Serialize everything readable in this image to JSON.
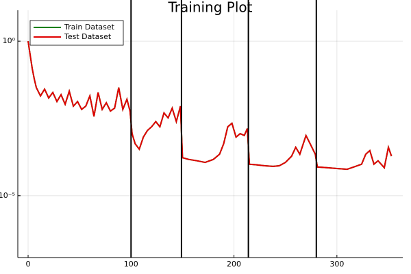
{
  "chart_data": {
    "type": "line",
    "title": "Training Plot",
    "x": [
      0,
      2,
      4,
      6,
      8,
      12,
      16,
      20,
      24,
      28,
      32,
      36,
      40,
      44,
      48,
      52,
      56,
      60,
      64,
      68,
      72,
      76,
      80,
      84,
      88,
      92,
      96,
      99,
      101,
      104,
      108,
      112,
      116,
      120,
      124,
      128,
      132,
      136,
      140,
      144,
      148,
      150,
      156,
      164,
      172,
      180,
      186,
      190,
      194,
      198,
      202,
      206,
      210,
      213,
      215,
      222,
      230,
      238,
      244,
      250,
      256,
      260,
      264,
      270,
      274,
      279,
      281,
      290,
      300,
      310,
      318,
      324,
      328,
      332,
      336,
      340,
      346,
      350,
      353
    ],
    "series": [
      {
        "name": "Train Dataset",
        "color": "#008000",
        "values": [
          1,
          0.363,
          0.132,
          0.0603,
          0.0316,
          0.017,
          0.0282,
          0.0145,
          0.0219,
          0.0112,
          0.0186,
          0.0091,
          0.024,
          0.0079,
          0.0112,
          0.0062,
          0.0079,
          0.017,
          0.0037,
          0.0219,
          0.0062,
          0.0102,
          0.0055,
          0.0068,
          0.0316,
          0.0062,
          0.0132,
          0.0055,
          0.00102,
          0.00048,
          0.00032,
          0.00079,
          0.0013,
          0.0017,
          0.0025,
          0.0017,
          0.0048,
          0.0033,
          0.0068,
          0.0025,
          0.0079,
          0.00017,
          0.00015,
          0.000135,
          0.00012,
          0.00015,
          0.00022,
          0.00048,
          0.0017,
          0.0022,
          0.00079,
          0.00102,
          0.00089,
          0.0015,
          0.000105,
          0.0001,
          9.3e-05,
          8.9e-05,
          9.3e-05,
          0.00012,
          0.00019,
          0.00037,
          0.00022,
          0.00089,
          0.00048,
          0.00022,
          8.5e-05,
          8.1e-05,
          7.6e-05,
          7.2e-05,
          8.9e-05,
          0.000105,
          0.00022,
          0.00029,
          0.000105,
          0.000135,
          8.1e-05,
          0.00037,
          0.00019
        ]
      },
      {
        "name": "Test Dataset",
        "color": "#e00000",
        "values": [
          1,
          0.363,
          0.132,
          0.0603,
          0.0316,
          0.017,
          0.0282,
          0.0145,
          0.0219,
          0.0112,
          0.0186,
          0.0091,
          0.024,
          0.0079,
          0.0112,
          0.0062,
          0.0079,
          0.017,
          0.0037,
          0.0219,
          0.0062,
          0.0102,
          0.0055,
          0.0068,
          0.0316,
          0.0062,
          0.0132,
          0.0055,
          0.00102,
          0.00048,
          0.00032,
          0.00079,
          0.0013,
          0.0017,
          0.0025,
          0.0017,
          0.0048,
          0.0033,
          0.0068,
          0.0025,
          0.0079,
          0.00017,
          0.00015,
          0.000135,
          0.00012,
          0.00015,
          0.00022,
          0.00048,
          0.0017,
          0.0022,
          0.00079,
          0.00102,
          0.00089,
          0.0015,
          0.000105,
          0.0001,
          9.3e-05,
          8.9e-05,
          9.3e-05,
          0.00012,
          0.00019,
          0.00037,
          0.00022,
          0.00089,
          0.00048,
          0.00022,
          8.5e-05,
          8.1e-05,
          7.6e-05,
          7.2e-05,
          8.9e-05,
          0.000105,
          0.00022,
          0.00029,
          0.000105,
          0.000135,
          8.1e-05,
          0.00037,
          0.00019
        ]
      }
    ],
    "vlines": [
      100,
      149,
      214,
      280
    ],
    "vline_color": "#000000",
    "xlim": [
      -10,
      364
    ],
    "xticks": [
      0,
      100,
      200,
      300
    ],
    "ylim": [
      1e-07,
      10
    ],
    "yticks": [
      {
        "value": 1,
        "label": "10⁰"
      },
      {
        "value": 1e-05,
        "label": "10⁻⁵"
      }
    ],
    "y_log": true,
    "grid": true,
    "legend": "top-left"
  }
}
